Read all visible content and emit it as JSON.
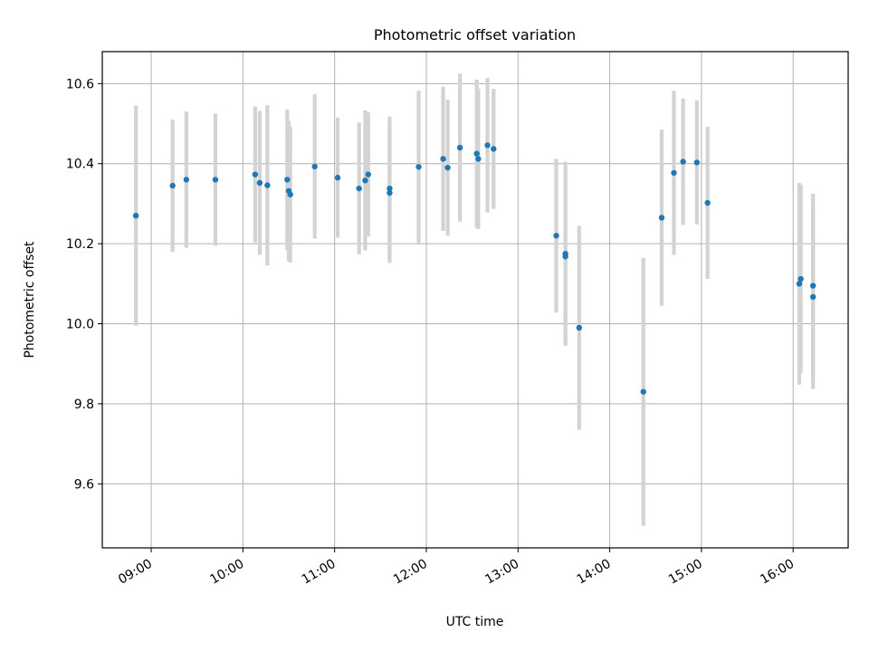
{
  "chart_data": {
    "type": "scatter",
    "title": "Photometric offset variation",
    "xlabel": "UTC time",
    "ylabel": "Photometric offset",
    "xlim": [
      "08:28",
      "16:36"
    ],
    "ylim": [
      9.44,
      10.68
    ],
    "xticks": [
      "09:00",
      "10:00",
      "11:00",
      "12:00",
      "13:00",
      "14:00",
      "15:00",
      "16:00"
    ],
    "yticks": [
      "9.6",
      "9.8",
      "10.0",
      "10.2",
      "10.4",
      "10.6"
    ],
    "grid": true,
    "colors": {
      "point": "#1f77b4",
      "errorbar": "#d3d3d3",
      "grid": "#b0b0b0"
    },
    "points": [
      {
        "x": "08:50",
        "y": 10.27,
        "err": 0.275
      },
      {
        "x": "09:14",
        "y": 10.345,
        "err": 0.165
      },
      {
        "x": "09:23",
        "y": 10.36,
        "err": 0.17
      },
      {
        "x": "09:42",
        "y": 10.36,
        "err": 0.165
      },
      {
        "x": "10:08",
        "y": 10.373,
        "err": 0.17
      },
      {
        "x": "10:11",
        "y": 10.352,
        "err": 0.18
      },
      {
        "x": "10:16",
        "y": 10.346,
        "err": 0.2
      },
      {
        "x": "10:29",
        "y": 10.36,
        "err": 0.175
      },
      {
        "x": "10:30",
        "y": 10.332,
        "err": 0.175
      },
      {
        "x": "10:31",
        "y": 10.323,
        "err": 0.17
      },
      {
        "x": "10:47",
        "y": 10.393,
        "err": 0.18
      },
      {
        "x": "11:02",
        "y": 10.365,
        "err": 0.15
      },
      {
        "x": "11:16",
        "y": 10.338,
        "err": 0.165
      },
      {
        "x": "11:20",
        "y": 10.358,
        "err": 0.175
      },
      {
        "x": "11:22",
        "y": 10.373,
        "err": 0.155
      },
      {
        "x": "11:36",
        "y": 10.327,
        "err": 0.175
      },
      {
        "x": "11:36",
        "y": 10.338,
        "err": 0.18
      },
      {
        "x": "11:55",
        "y": 10.392,
        "err": 0.19
      },
      {
        "x": "12:11",
        "y": 10.412,
        "err": 0.18
      },
      {
        "x": "12:14",
        "y": 10.39,
        "err": 0.17
      },
      {
        "x": "12:22",
        "y": 10.44,
        "err": 0.185
      },
      {
        "x": "12:33",
        "y": 10.425,
        "err": 0.185
      },
      {
        "x": "12:34",
        "y": 10.412,
        "err": 0.175
      },
      {
        "x": "12:40",
        "y": 10.446,
        "err": 0.168
      },
      {
        "x": "12:44",
        "y": 10.437,
        "err": 0.15
      },
      {
        "x": "13:25",
        "y": 10.22,
        "err": 0.192
      },
      {
        "x": "13:31",
        "y": 10.175,
        "err": 0.23
      },
      {
        "x": "13:31",
        "y": 10.168,
        "err": 0.22
      },
      {
        "x": "13:40",
        "y": 9.99,
        "err": 0.255
      },
      {
        "x": "14:22",
        "y": 9.83,
        "err": 0.335
      },
      {
        "x": "14:34",
        "y": 10.265,
        "err": 0.22
      },
      {
        "x": "14:42",
        "y": 10.377,
        "err": 0.205
      },
      {
        "x": "14:48",
        "y": 10.405,
        "err": 0.158
      },
      {
        "x": "14:57",
        "y": 10.403,
        "err": 0.155
      },
      {
        "x": "15:04",
        "y": 10.302,
        "err": 0.19
      },
      {
        "x": "16:04",
        "y": 10.1,
        "err": 0.252
      },
      {
        "x": "16:05",
        "y": 10.112,
        "err": 0.235
      },
      {
        "x": "16:13",
        "y": 10.095,
        "err": 0.23
      },
      {
        "x": "16:13",
        "y": 10.067,
        "err": 0.23
      }
    ]
  }
}
